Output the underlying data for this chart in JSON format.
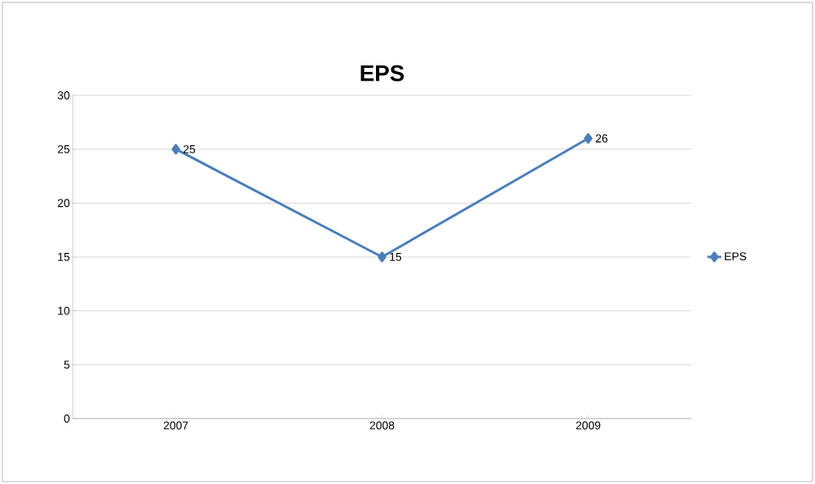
{
  "chart_data": {
    "type": "line",
    "title": "EPS",
    "categories": [
      "2007",
      "2008",
      "2009"
    ],
    "series": [
      {
        "name": "EPS",
        "color": "#4a7ebb",
        "values": [
          25,
          15,
          26
        ]
      }
    ],
    "ylim": [
      0,
      30
    ],
    "yticks": [
      0,
      5,
      10,
      15,
      20,
      25,
      30
    ],
    "grid": "y",
    "legend": "right",
    "marker": "diamond",
    "line_style": "solid",
    "data_labels": true
  }
}
